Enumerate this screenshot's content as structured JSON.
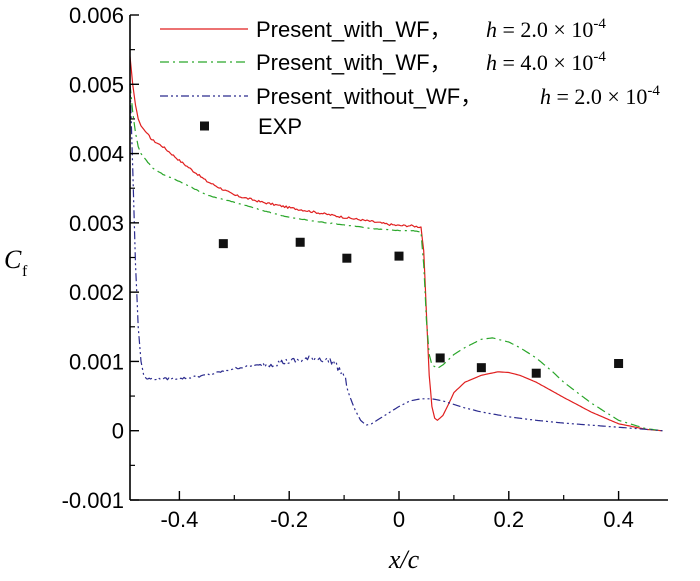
{
  "chart_data": {
    "type": "line",
    "xlabel": "x/c",
    "ylabel": "C_f",
    "ylabel_main": "C",
    "ylabel_sub": "f",
    "xlim": [
      -0.49,
      0.49
    ],
    "ylim": [
      -0.001,
      0.006
    ],
    "x_ticks": [
      -0.4,
      -0.2,
      0,
      0.2,
      0.4
    ],
    "x_tick_labels": [
      "-0.4",
      "-0.2",
      "0",
      "0.2",
      "0.4"
    ],
    "y_ticks": [
      -0.001,
      0,
      0.001,
      0.002,
      0.003,
      0.004,
      0.005,
      0.006
    ],
    "y_tick_labels": [
      "-0.001",
      "0",
      "0.001",
      "0.002",
      "0.003",
      "0.004",
      "0.005",
      "0.006"
    ],
    "grid": false,
    "legend_position": "top-right",
    "series": [
      {
        "name": "Present_with_WF，h = 2.0 × 10^-4",
        "legend_label": "Present_with_WF，",
        "legend_math": "h = 2.0 × 10",
        "legend_exp": "-4",
        "color": "#e01f1f",
        "style": "solid",
        "noise": 3e-05,
        "x": [
          -0.49,
          -0.485,
          -0.48,
          -0.475,
          -0.47,
          -0.46,
          -0.45,
          -0.43,
          -0.4,
          -0.35,
          -0.3,
          -0.25,
          -0.2,
          -0.15,
          -0.1,
          -0.05,
          -0.02,
          0.0,
          0.02,
          0.04,
          0.045,
          0.05,
          0.055,
          0.06,
          0.065,
          0.07,
          0.08,
          0.09,
          0.1,
          0.12,
          0.15,
          0.18,
          0.2,
          0.22,
          0.25,
          0.3,
          0.35,
          0.4,
          0.45,
          0.48
        ],
        "y": [
          0.0054,
          0.005,
          0.0047,
          0.0045,
          0.0044,
          0.0043,
          0.0042,
          0.0041,
          0.0039,
          0.0036,
          0.0034,
          0.0033,
          0.00322,
          0.00315,
          0.00308,
          0.00302,
          0.00298,
          0.00296,
          0.00296,
          0.00294,
          0.0026,
          0.0017,
          0.0008,
          0.00035,
          0.00018,
          0.00015,
          0.00022,
          0.00038,
          0.00055,
          0.0007,
          0.0008,
          0.00085,
          0.00084,
          0.0008,
          0.0007,
          0.00048,
          0.00027,
          0.0001,
          2e-05,
          0.0
        ]
      },
      {
        "name": "Present_with_WF，h = 4.0 × 10^-4",
        "legend_label": "Present_with_WF，",
        "legend_math": "h = 4.0 × 10",
        "legend_exp": "-4",
        "color": "#2aa62a",
        "style": "dashdot",
        "noise": 1e-05,
        "x": [
          -0.49,
          -0.485,
          -0.48,
          -0.475,
          -0.47,
          -0.46,
          -0.45,
          -0.43,
          -0.4,
          -0.35,
          -0.3,
          -0.25,
          -0.2,
          -0.15,
          -0.1,
          -0.05,
          -0.02,
          0.0,
          0.02,
          0.04,
          0.045,
          0.05,
          0.055,
          0.06,
          0.07,
          0.08,
          0.1,
          0.12,
          0.15,
          0.17,
          0.2,
          0.22,
          0.25,
          0.28,
          0.3,
          0.35,
          0.4,
          0.45,
          0.48
        ],
        "y": [
          0.005,
          0.0046,
          0.0043,
          0.0041,
          0.004,
          0.0039,
          0.0038,
          0.0037,
          0.0036,
          0.0034,
          0.0033,
          0.00318,
          0.00308,
          0.00302,
          0.00297,
          0.00292,
          0.0029,
          0.00289,
          0.00289,
          0.00287,
          0.0024,
          0.0016,
          0.0011,
          0.00095,
          0.0009,
          0.00095,
          0.0011,
          0.0012,
          0.00132,
          0.00134,
          0.00128,
          0.0012,
          0.00105,
          0.00085,
          0.0007,
          0.0004,
          0.00015,
          3e-05,
          0.0
        ]
      },
      {
        "name": "Present_without_WF，h = 2.0 × 10^-4",
        "legend_label": "Present_without_WF，",
        "legend_math": "h = 2.0 × 10",
        "legend_exp": "-4",
        "color": "#2b2b8e",
        "style": "dashdotdot",
        "noise": 3e-05,
        "x": [
          -0.49,
          -0.485,
          -0.48,
          -0.475,
          -0.47,
          -0.465,
          -0.46,
          -0.45,
          -0.43,
          -0.4,
          -0.35,
          -0.3,
          -0.25,
          -0.2,
          -0.15,
          -0.12,
          -0.1,
          -0.09,
          -0.08,
          -0.07,
          -0.06,
          -0.05,
          -0.03,
          0.0,
          0.02,
          0.04,
          0.06,
          0.08,
          0.1,
          0.12,
          0.15,
          0.2,
          0.25,
          0.3,
          0.35,
          0.4,
          0.45,
          0.48
        ],
        "y": [
          0.005,
          0.0038,
          0.0024,
          0.0015,
          0.001,
          0.0008,
          0.00075,
          0.00075,
          0.00075,
          0.00075,
          0.0008,
          0.0009,
          0.00095,
          0.001,
          0.00105,
          0.001,
          0.0008,
          0.0005,
          0.0003,
          0.00015,
          8e-05,
          0.0001,
          0.0002,
          0.00035,
          0.00043,
          0.00046,
          0.00046,
          0.00043,
          0.00038,
          0.00033,
          0.00027,
          0.0002,
          0.00015,
          0.00011,
          8e-05,
          5e-05,
          2e-05,
          0.0
        ]
      },
      {
        "name": "EXP",
        "legend_label": "EXP",
        "type": "scatter",
        "color": "#111111",
        "x": [
          -0.32,
          -0.18,
          -0.095,
          0.0,
          0.075,
          0.15,
          0.25,
          0.4
        ],
        "y": [
          0.0027,
          0.00272,
          0.00249,
          0.00252,
          0.00105,
          0.00091,
          0.00083,
          0.00097
        ]
      }
    ]
  }
}
